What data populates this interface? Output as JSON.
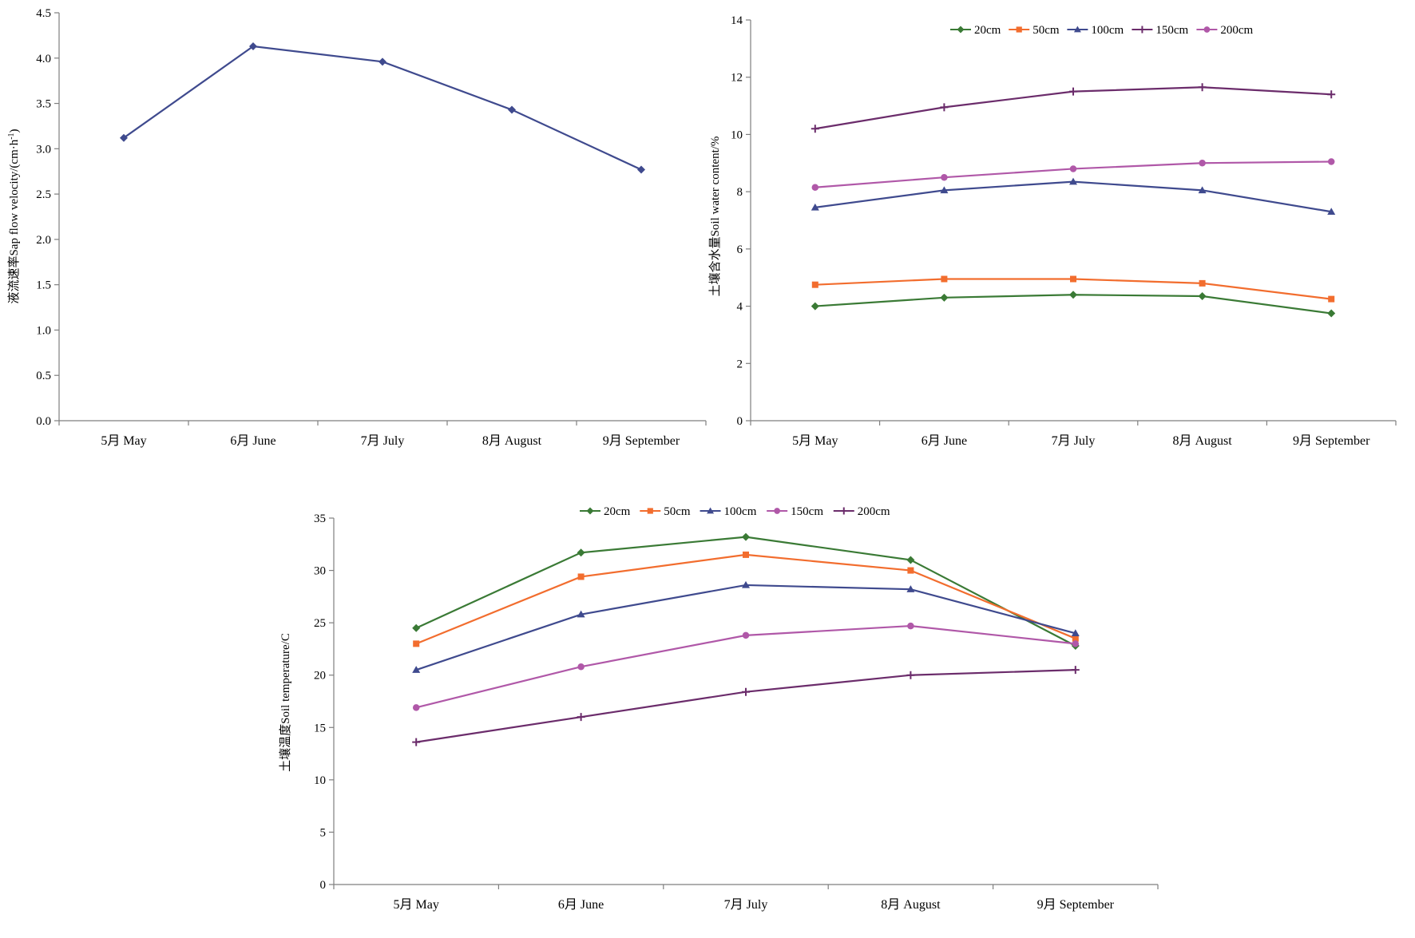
{
  "chart_data": [
    {
      "type": "line",
      "ylabel": "液流速率Sap flow velocity/(cm·h",
      "ylabel_sup": "-1",
      "ylabel_end": ")",
      "categories": [
        "5月 May",
        "6月 June",
        "7月 July",
        "8月 August",
        "9月 September"
      ],
      "ylim": [
        0,
        4.5
      ],
      "yticks": [
        "0.0",
        "0.5",
        "1.0",
        "1.5",
        "2.0",
        "2.5",
        "3.0",
        "3.5",
        "4.0",
        "4.5"
      ],
      "series": [
        {
          "values": [
            3.12,
            4.13,
            3.96,
            3.43,
            2.77
          ],
          "color": "#3f4a8e",
          "marker": "diamond"
        }
      ]
    },
    {
      "type": "line",
      "ylabel": "土壤含水量Soil water content/%",
      "categories": [
        "5月 May",
        "6月 June",
        "7月 July",
        "8月 August",
        "9月 September"
      ],
      "ylim": [
        0,
        14
      ],
      "yticks": [
        "0",
        "2",
        "4",
        "6",
        "8",
        "10",
        "12",
        "14"
      ],
      "legend_position": "top",
      "series": [
        {
          "name": "20cm",
          "values": [
            4.0,
            4.3,
            4.4,
            4.35,
            3.75
          ],
          "color": "#3a7a35",
          "marker": "diamond"
        },
        {
          "name": "50cm",
          "values": [
            4.75,
            4.95,
            4.95,
            4.8,
            4.25
          ],
          "color": "#f26d2e",
          "marker": "square"
        },
        {
          "name": "100cm",
          "values": [
            7.45,
            8.05,
            8.35,
            8.05,
            7.3
          ],
          "color": "#3f4a8e",
          "marker": "triangle"
        },
        {
          "name": "150cm",
          "values": [
            10.2,
            10.95,
            11.5,
            11.65,
            11.4
          ],
          "color": "#6b2c6b",
          "marker": "plus"
        },
        {
          "name": "200cm",
          "values": [
            8.15,
            8.5,
            8.8,
            9.0,
            9.05
          ],
          "color": "#b058a8",
          "marker": "circle"
        }
      ]
    },
    {
      "type": "line",
      "ylabel": "土壤温度Soil temperature/C",
      "categories": [
        "5月 May",
        "6月 June",
        "7月 July",
        "8月 August",
        "9月 September"
      ],
      "ylim": [
        0,
        35
      ],
      "yticks": [
        "0",
        "5",
        "10",
        "15",
        "20",
        "25",
        "30",
        "35"
      ],
      "legend_position": "top",
      "series": [
        {
          "name": "20cm",
          "values": [
            24.5,
            31.7,
            33.2,
            31.0,
            22.8
          ],
          "color": "#3a7a35",
          "marker": "diamond"
        },
        {
          "name": "50cm",
          "values": [
            23.0,
            29.4,
            31.5,
            30.0,
            23.5
          ],
          "color": "#f26d2e",
          "marker": "square"
        },
        {
          "name": "100cm",
          "values": [
            20.5,
            25.8,
            28.6,
            28.2,
            24.0
          ],
          "color": "#3f4a8e",
          "marker": "triangle"
        },
        {
          "name": "150cm",
          "values": [
            16.9,
            20.8,
            23.8,
            24.7,
            23.0
          ],
          "color": "#b058a8",
          "marker": "circle"
        },
        {
          "name": "200cm",
          "values": [
            13.6,
            16.0,
            18.4,
            20.0,
            20.5
          ],
          "color": "#6b2c6b",
          "marker": "plus"
        }
      ]
    }
  ]
}
